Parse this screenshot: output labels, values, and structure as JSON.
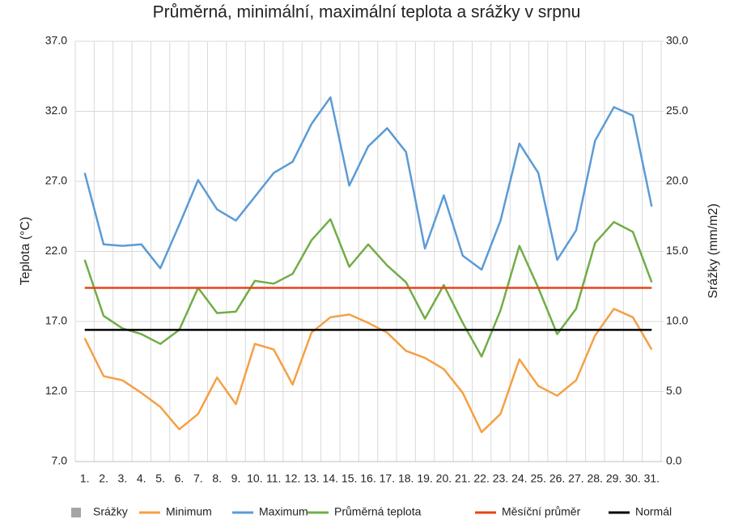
{
  "chart_data": {
    "type": "line",
    "title": "Průměrná, minimální, maximální teplota a srážky v srpnu",
    "ylabel": "Teplota (°C)",
    "y2label": "Srážky (mm/m2)",
    "categories": [
      "1.",
      "2.",
      "3.",
      "4.",
      "5.",
      "6.",
      "7.",
      "8.",
      "9.",
      "10.",
      "11.",
      "12.",
      "13.",
      "14.",
      "15.",
      "16.",
      "17.",
      "18.",
      "19.",
      "20.",
      "21.",
      "22.",
      "23.",
      "24.",
      "25.",
      "26.",
      "27.",
      "28.",
      "29.",
      "30.",
      "31."
    ],
    "ylim": [
      7,
      37
    ],
    "yticks": [
      {
        "value": 7,
        "label": "7.0"
      },
      {
        "value": 12,
        "label": "12.0"
      },
      {
        "value": 17,
        "label": "17.0"
      },
      {
        "value": 22,
        "label": "22.0"
      },
      {
        "value": 27,
        "label": "27.0"
      },
      {
        "value": 32,
        "label": "32.0"
      },
      {
        "value": 37,
        "label": "37.0"
      }
    ],
    "y2lim": [
      0,
      30
    ],
    "y2ticks": [
      {
        "value": 0,
        "label": "0.0"
      },
      {
        "value": 5,
        "label": "5.0"
      },
      {
        "value": 10,
        "label": "10.0"
      },
      {
        "value": 15,
        "label": "15.0"
      },
      {
        "value": 20,
        "label": "20.0"
      },
      {
        "value": 25,
        "label": "25.0"
      },
      {
        "value": 30,
        "label": "30.0"
      }
    ],
    "grid": true,
    "legend": "bottom",
    "series": [
      {
        "name": "Srážky",
        "type": "bar",
        "axis": "y2",
        "color": "#a5a5a5",
        "values": [
          0,
          0,
          0,
          0,
          0,
          0,
          0,
          0,
          0,
          0,
          0,
          0,
          0,
          0,
          0,
          0,
          0,
          0,
          0,
          0,
          0,
          0,
          0,
          0,
          0,
          0,
          0,
          0,
          0,
          0,
          0
        ]
      },
      {
        "name": "Minimum",
        "color": "#f5a044",
        "values": [
          15.8,
          13.1,
          12.8,
          11.9,
          10.9,
          9.3,
          10.4,
          13.0,
          11.1,
          15.4,
          15.0,
          12.5,
          16.2,
          17.3,
          17.5,
          16.9,
          16.2,
          14.9,
          14.4,
          13.6,
          11.9,
          9.1,
          10.4,
          14.3,
          12.4,
          11.7,
          12.8,
          16.0,
          17.9,
          17.3,
          15.0
        ]
      },
      {
        "name": "Maximum",
        "color": "#5b9bd5",
        "values": [
          27.6,
          22.5,
          22.4,
          22.5,
          20.8,
          23.9,
          27.1,
          25.0,
          24.2,
          25.9,
          27.6,
          28.4,
          31.1,
          33.0,
          26.7,
          29.5,
          30.8,
          29.1,
          22.2,
          26.0,
          21.7,
          20.7,
          24.2,
          29.7,
          27.6,
          21.4,
          23.5,
          29.9,
          32.3,
          31.7,
          25.2
        ]
      },
      {
        "name": "Průměrná teplota",
        "color": "#70ad47",
        "values": [
          21.4,
          17.4,
          16.5,
          16.1,
          15.4,
          16.4,
          19.4,
          17.6,
          17.7,
          19.9,
          19.7,
          20.4,
          22.8,
          24.3,
          20.9,
          22.5,
          21.0,
          19.8,
          17.2,
          19.6,
          16.9,
          14.5,
          17.8,
          22.4,
          19.4,
          16.1,
          17.9,
          22.6,
          24.1,
          23.4,
          19.8
        ]
      },
      {
        "name": "Měsíční průměr",
        "color": "#e8431a",
        "values": [
          19.4,
          19.4,
          19.4,
          19.4,
          19.4,
          19.4,
          19.4,
          19.4,
          19.4,
          19.4,
          19.4,
          19.4,
          19.4,
          19.4,
          19.4,
          19.4,
          19.4,
          19.4,
          19.4,
          19.4,
          19.4,
          19.4,
          19.4,
          19.4,
          19.4,
          19.4,
          19.4,
          19.4,
          19.4,
          19.4,
          19.4
        ]
      },
      {
        "name": "Normál",
        "color": "#000000",
        "values": [
          16.4,
          16.4,
          16.4,
          16.4,
          16.4,
          16.4,
          16.4,
          16.4,
          16.4,
          16.4,
          16.4,
          16.4,
          16.4,
          16.4,
          16.4,
          16.4,
          16.4,
          16.4,
          16.4,
          16.4,
          16.4,
          16.4,
          16.4,
          16.4,
          16.4,
          16.4,
          16.4,
          16.4,
          16.4,
          16.4,
          16.4
        ]
      }
    ]
  }
}
